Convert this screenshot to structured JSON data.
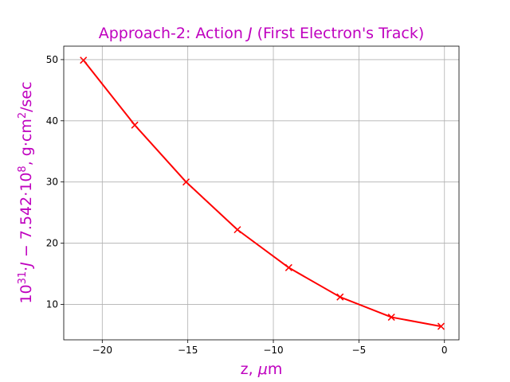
{
  "chart_data": {
    "type": "line",
    "title_parts": {
      "prefix": "Approach-2: Action ",
      "symbol": "J",
      "suffix": " (First Electron's Track)"
    },
    "xlabel_parts": {
      "prefix": "z, ",
      "unit_symbol": "μ",
      "unit_rest": "m"
    },
    "ylabel_parts": {
      "base1": "10",
      "sup1": "31",
      "dot1": "·",
      "symbol": "J",
      "minus": " − 7.542·10",
      "sup2": "8",
      "units_a": ", g·cm",
      "sup3": "2",
      "units_b": "/sec"
    },
    "xlim": [
      -22.25,
      0.85
    ],
    "ylim": [
      4.2,
      52.2
    ],
    "xticks": [
      -20,
      -15,
      -10,
      -5,
      0
    ],
    "xtick_labels": [
      "−20",
      "−15",
      "−10",
      "−5",
      "0"
    ],
    "yticks": [
      10,
      20,
      30,
      40,
      50
    ],
    "ytick_labels": [
      "10",
      "20",
      "30",
      "40",
      "50"
    ],
    "grid": true,
    "legend": "none",
    "series": [
      {
        "color": "#ff0000",
        "marker": "x",
        "x": [
          -21.1,
          -18.1,
          -15.1,
          -12.1,
          -9.1,
          -6.1,
          -3.1,
          -0.2
        ],
        "y": [
          49.9,
          39.3,
          30.0,
          22.2,
          16.0,
          11.2,
          7.9,
          6.4
        ]
      }
    ]
  }
}
